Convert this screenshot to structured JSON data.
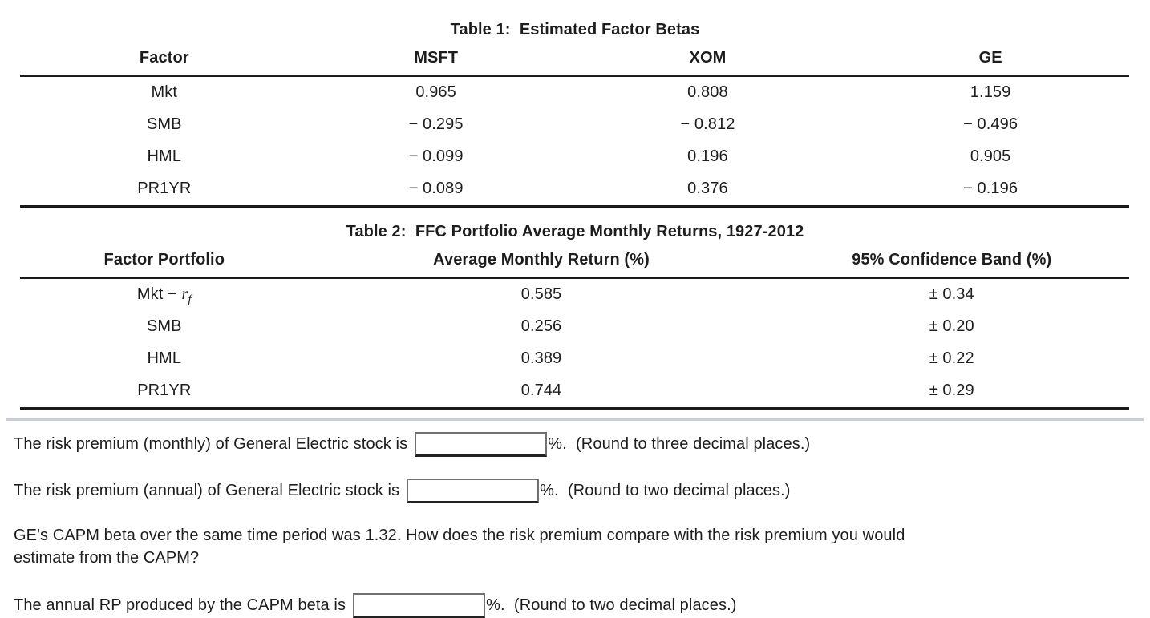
{
  "colors": {
    "text": "#1d1d1d",
    "table_rule": "#1a1a1a",
    "divider": "#c9cdd6",
    "input_border": "#717171",
    "input_border_bottom": "#222222",
    "background": "#ffffff"
  },
  "table1": {
    "title": "Table 1:  Estimated Factor Betas",
    "columns": [
      "Factor",
      "MSFT",
      "XOM",
      "GE"
    ],
    "rows": [
      {
        "factor": "Mkt",
        "msft": "0.965",
        "xom": "0.808",
        "ge": "1.159"
      },
      {
        "factor": "SMB",
        "msft": "− 0.295",
        "xom": "− 0.812",
        "ge": "− 0.496"
      },
      {
        "factor": "HML",
        "msft": "− 0.099",
        "xom": "0.196",
        "ge": "0.905"
      },
      {
        "factor": "PR1YR",
        "msft": "− 0.089",
        "xom": "0.376",
        "ge": "− 0.196"
      }
    ]
  },
  "table2": {
    "title": "Table 2:  FFC Portfolio Average Monthly Returns, 1927-2012",
    "columns": [
      "Factor Portfolio",
      "Average Monthly Return (%)",
      "95% Confidence Band (%)"
    ],
    "rows": [
      {
        "name": "Mkt − ",
        "var": "r",
        "sub": "f",
        "avg_return": "0.585",
        "conf_band": "± 0.34"
      },
      {
        "name": "SMB",
        "var": "",
        "sub": "",
        "avg_return": "0.256",
        "conf_band": "± 0.20"
      },
      {
        "name": "HML",
        "var": "",
        "sub": "",
        "avg_return": "0.389",
        "conf_band": "± 0.22"
      },
      {
        "name": "PR1YR",
        "var": "",
        "sub": "",
        "avg_return": "0.744",
        "conf_band": "± 0.29"
      }
    ]
  },
  "questions": {
    "q1_prefix": "The risk premium (monthly) of General Electric stock is",
    "q1_value": "",
    "q1_suffix": "%.  (Round to three decimal places.)",
    "q2_prefix": "The risk premium (annual) of General Electric stock is",
    "q2_value": "",
    "q2_suffix": "%.  (Round to two decimal places.)",
    "capm_note": "GE's CAPM beta over the same time period was 1.32. How does the risk premium compare with the risk premium you would estimate from the CAPM?",
    "q3_prefix": "The annual RP produced by the CAPM beta is",
    "q3_value": "",
    "q3_suffix": "%.  (Round to two decimal places.)"
  }
}
